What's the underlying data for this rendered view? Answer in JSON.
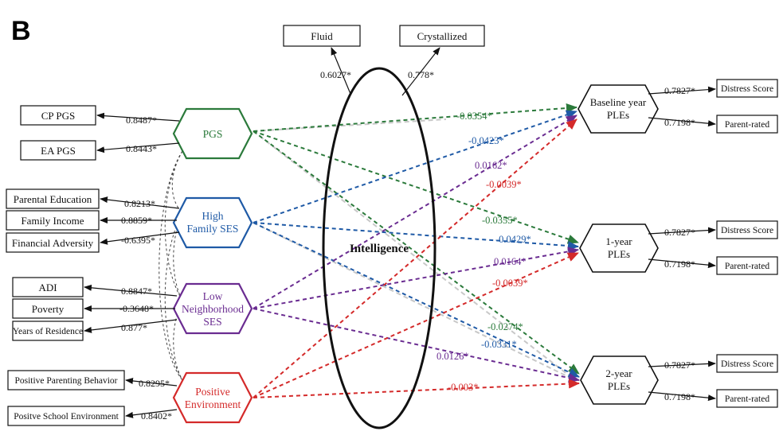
{
  "panel_letter": "B",
  "colors": {
    "pgs": "#2b7a3b",
    "ses": "#1f5aa6",
    "neighborhood": "#6a2c91",
    "environment": "#d42a2a",
    "gray": "#c8c8c8",
    "ink": "#111111"
  },
  "intelligence": {
    "label": "Intelligence",
    "fluid": {
      "label": "Fluid",
      "loading": "0.6027*"
    },
    "crystallized": {
      "label": "Crystallized",
      "loading": "0.778*"
    }
  },
  "pgs": {
    "label": "PGS",
    "indicators": [
      {
        "label": "CP PGS",
        "loading": "0.8487*"
      },
      {
        "label": "EA PGS",
        "loading": "0.8443*"
      }
    ]
  },
  "ses": {
    "label_line1": "High",
    "label_line2": "Family SES",
    "indicators": [
      {
        "label": "Parental Education",
        "loading": "0.8213*"
      },
      {
        "label": "Family Income",
        "loading": "0.8859*"
      },
      {
        "label": "Financial Adversity",
        "loading": "-0.6395*"
      }
    ]
  },
  "neighborhood": {
    "label_line1": "Low",
    "label_line2": "Neighborhood",
    "label_line3": "SES",
    "indicators": [
      {
        "label": "ADI",
        "loading": "0.8847*"
      },
      {
        "label": "Poverty",
        "loading": "-0.3648*"
      },
      {
        "label": "Years of Residence",
        "loading": "0.877*"
      }
    ]
  },
  "environment": {
    "label_line1": "Positive",
    "label_line2": "Environment",
    "indicators": [
      {
        "label": "Positive Parenting Behavior",
        "loading": "0.8295*"
      },
      {
        "label": "Positve School Environment",
        "loading": "0.8402*"
      }
    ]
  },
  "outcomes": [
    {
      "label_line1": "Baseline year",
      "label_line2": "PLEs",
      "indicators": [
        {
          "label": "Distress Score",
          "loading": "0.7827*"
        },
        {
          "label": "Parent-rated",
          "loading": "0.7198*"
        }
      ],
      "coefficients": {
        "pgs": "-0.0354*",
        "ses": "-0.0423*",
        "neighborhood": "0.0162*",
        "environment": "-0.0039*"
      }
    },
    {
      "label_line1": "1-year",
      "label_line2": "PLEs",
      "indicators": [
        {
          "label": "Distress Score",
          "loading": "0.7827*"
        },
        {
          "label": "Parent-rated",
          "loading": "0.7198*"
        }
      ],
      "coefficients": {
        "pgs": "-0.0355*",
        "ses": "-0.0429*",
        "neighborhood": "0.0164*",
        "environment": "-0.0039*"
      }
    },
    {
      "label_line1": "2-year",
      "label_line2": "PLEs",
      "indicators": [
        {
          "label": "Distress Score",
          "loading": "0.7827*"
        },
        {
          "label": "Parent-rated",
          "loading": "0.7198*"
        }
      ],
      "coefficients": {
        "pgs": "-0.0274*",
        "ses": "-0.0331*",
        "neighborhood": "0.0126*",
        "environment": "-0.003*"
      }
    }
  ]
}
